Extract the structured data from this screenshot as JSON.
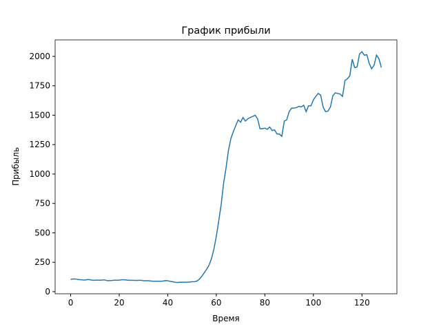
{
  "chart_data": {
    "type": "line",
    "title": "График прибыли",
    "xlabel": "Время",
    "ylabel": "Прибыль",
    "x": [
      0,
      1,
      2,
      3,
      4,
      5,
      6,
      7,
      8,
      9,
      10,
      11,
      12,
      13,
      14,
      15,
      16,
      17,
      18,
      19,
      20,
      21,
      22,
      23,
      24,
      25,
      26,
      27,
      28,
      29,
      30,
      31,
      32,
      33,
      34,
      35,
      36,
      37,
      38,
      39,
      40,
      41,
      42,
      43,
      44,
      45,
      46,
      47,
      48,
      49,
      50,
      51,
      52,
      53,
      54,
      55,
      56,
      57,
      58,
      59,
      60,
      61,
      62,
      63,
      64,
      65,
      66,
      67,
      68,
      69,
      70,
      71,
      72,
      73,
      74,
      75,
      76,
      77,
      78,
      79,
      80,
      81,
      82,
      83,
      84,
      85,
      86,
      87,
      88,
      89,
      90,
      91,
      92,
      93,
      94,
      95,
      96,
      97,
      98,
      99,
      100,
      101,
      102,
      103,
      104,
      105,
      106,
      107,
      108,
      109,
      110,
      111,
      112,
      113,
      114,
      115,
      116,
      117,
      118,
      119,
      120,
      121,
      122,
      123,
      124,
      125,
      126,
      127,
      128
    ],
    "series": [
      {
        "name": "Прибыль",
        "color": "#1f77b4",
        "values": [
          105,
          108,
          108,
          103,
          102,
          100,
          99,
          103,
          101,
          97,
          97,
          99,
          97,
          99,
          100,
          94,
          94,
          95,
          98,
          97,
          98,
          101,
          101,
          99,
          97,
          97,
          97,
          95,
          97,
          97,
          93,
          93,
          93,
          91,
          88,
          89,
          89,
          88,
          90,
          94,
          93,
          87,
          85,
          80,
          78,
          81,
          80,
          81,
          81,
          82,
          84,
          85,
          90,
          105,
          130,
          160,
          190,
          225,
          280,
          360,
          470,
          600,
          740,
          920,
          1050,
          1200,
          1300,
          1360,
          1410,
          1460,
          1440,
          1480,
          1450,
          1470,
          1480,
          1490,
          1500,
          1470,
          1385,
          1385,
          1390,
          1380,
          1400,
          1370,
          1375,
          1340,
          1340,
          1320,
          1450,
          1460,
          1530,
          1560,
          1560,
          1565,
          1575,
          1570,
          1585,
          1530,
          1580,
          1580,
          1630,
          1660,
          1685,
          1670,
          1570,
          1530,
          1535,
          1570,
          1665,
          1690,
          1685,
          1680,
          1660,
          1795,
          1810,
          1835,
          1975,
          1905,
          1910,
          2020,
          2040,
          2010,
          2015,
          1940,
          1895,
          1925,
          2010,
          1980,
          1905
        ]
      }
    ],
    "xlim": [
      -6.4,
      134.4
    ],
    "ylim": [
      -18,
      2140
    ],
    "xticks": [
      0,
      20,
      40,
      60,
      80,
      100,
      120
    ],
    "yticks": [
      0,
      250,
      500,
      750,
      1000,
      1250,
      1500,
      1750,
      2000
    ]
  }
}
